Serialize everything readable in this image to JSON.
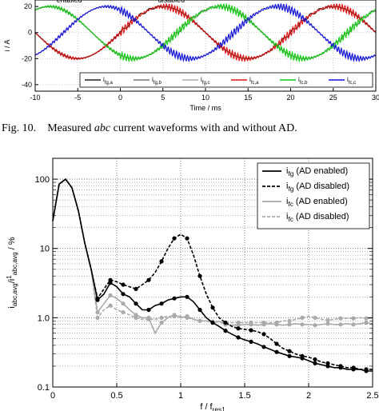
{
  "caption": {
    "label": "Fig. 10.",
    "text_before": "Measured ",
    "text_italic": "abc",
    "text_after": " current waveforms with and without AD."
  },
  "chart_data": [
    {
      "type": "line",
      "ylabel": "i / A",
      "xlabel": "Time / ms",
      "xlim": [
        -10,
        30
      ],
      "ylim": [
        -45,
        25
      ],
      "x_ticks": [
        -10,
        -5,
        0,
        5,
        10,
        15,
        20,
        25,
        30
      ],
      "y_ticks": [
        20,
        0,
        -20,
        -40
      ],
      "annotations": [
        "enabled",
        "disabled"
      ],
      "period_ms": 20,
      "amplitude_A": 20,
      "series": [
        {
          "name": "i_fg,a",
          "label_main": "i",
          "label_sub": "fg,a",
          "color": "#222222",
          "phase_deg": 0
        },
        {
          "name": "i_fg,b",
          "label_main": "i",
          "label_sub": "fg,b",
          "color": "#777777",
          "phase_deg": -120
        },
        {
          "name": "i_fg,c",
          "label_main": "i",
          "label_sub": "fg,c",
          "color": "#aaaaaa",
          "phase_deg": 120
        },
        {
          "name": "i_fc,a",
          "label_main": "i",
          "label_sub": "fc,a",
          "color": "#dd1111",
          "phase_deg": 0
        },
        {
          "name": "i_fc,b",
          "label_main": "i",
          "label_sub": "fc,b",
          "color": "#11cc11",
          "phase_deg": -120
        },
        {
          "name": "i_fc,c",
          "label_main": "i",
          "label_sub": "fc,c",
          "color": "#1111dd",
          "phase_deg": 120
        }
      ]
    },
    {
      "type": "line",
      "ylabel": "i_abc,avg / i^1_abc,avg / %",
      "ylabel_parts": {
        "main": "i",
        "sub": "abc,avg",
        "slash": "/i",
        "sup": "1",
        "sub2": "abc,avg",
        "unit": " / %"
      },
      "xlabel": "f / f_res1",
      "xlabel_parts": {
        "main": "f / f",
        "sub": "res1"
      },
      "y_scale": "log",
      "xlim": [
        0,
        2.5
      ],
      "ylim": [
        0.1,
        200
      ],
      "x_ticks": [
        "0",
        "0.5",
        "1",
        "1.5",
        "2",
        "2.5"
      ],
      "y_ticks": [
        "100",
        "10",
        "1.0",
        "0.1"
      ],
      "legend_position": "top-right",
      "series": [
        {
          "name": "i_fg (AD enabled)",
          "label_main": "i",
          "label_sub": "fg",
          "label_rest": "(AD enabled)",
          "color": "#000000",
          "dash": "solid",
          "x": [
            0,
            0.05,
            0.1,
            0.15,
            0.2,
            0.25,
            0.3,
            0.35,
            0.4,
            0.45,
            0.5,
            0.55,
            0.6,
            0.65,
            0.7,
            0.75,
            0.8,
            0.85,
            0.9,
            0.95,
            1.0,
            1.05,
            1.1,
            1.15,
            1.2,
            1.25,
            1.3,
            1.35,
            1.4,
            1.45,
            1.5,
            1.55,
            1.6,
            1.65,
            1.7,
            1.75,
            1.8,
            1.85,
            1.9,
            1.95,
            2.0,
            2.05,
            2.1,
            2.15,
            2.2,
            2.25,
            2.3,
            2.35,
            2.4,
            2.45,
            2.5
          ],
          "y": [
            25,
            85,
            100,
            75,
            35,
            12,
            5,
            1.8,
            2.2,
            3.2,
            2.8,
            2.2,
            2.0,
            1.6,
            1.3,
            1.3,
            1.5,
            1.6,
            1.8,
            1.9,
            2.0,
            2.0,
            1.7,
            1.3,
            1.0,
            0.85,
            0.75,
            0.65,
            0.58,
            0.52,
            0.48,
            0.45,
            0.42,
            0.38,
            0.35,
            0.32,
            0.3,
            0.28,
            0.27,
            0.26,
            0.24,
            0.22,
            0.21,
            0.2,
            0.19,
            0.19,
            0.18,
            0.18,
            0.18,
            0.17,
            0.17
          ]
        },
        {
          "name": "i_fg (AD disabled)",
          "label_main": "i",
          "label_sub": "fg",
          "label_rest": "(AD disabled)",
          "color": "#000000",
          "dash": "dashed",
          "x": [
            0,
            0.05,
            0.1,
            0.15,
            0.2,
            0.25,
            0.3,
            0.35,
            0.4,
            0.45,
            0.5,
            0.55,
            0.6,
            0.65,
            0.7,
            0.75,
            0.8,
            0.85,
            0.9,
            0.95,
            1.0,
            1.05,
            1.1,
            1.15,
            1.2,
            1.25,
            1.3,
            1.35,
            1.4,
            1.45,
            1.5,
            1.55,
            1.6,
            1.65,
            1.7,
            1.75,
            1.8,
            1.85,
            1.9,
            1.95,
            2.0,
            2.05,
            2.1,
            2.15,
            2.2,
            2.25,
            2.3,
            2.35,
            2.4,
            2.45,
            2.5
          ],
          "y": [
            25,
            85,
            100,
            75,
            35,
            12,
            5,
            1.9,
            2.6,
            3.5,
            3.3,
            3.0,
            2.8,
            2.6,
            3.0,
            3.5,
            4.5,
            6.5,
            10,
            14,
            16,
            14,
            8,
            4,
            2.2,
            1.4,
            1.0,
            0.85,
            0.75,
            0.7,
            0.68,
            0.66,
            0.63,
            0.58,
            0.5,
            0.42,
            0.36,
            0.33,
            0.3,
            0.28,
            0.27,
            0.25,
            0.23,
            0.22,
            0.21,
            0.2,
            0.19,
            0.19,
            0.18,
            0.18,
            0.18
          ]
        },
        {
          "name": "i_fc (AD enabled)",
          "label_main": "i",
          "label_sub": "fc",
          "label_rest": "(AD enabled)",
          "color": "#aaaaaa",
          "dash": "solid",
          "x": [
            0,
            0.05,
            0.1,
            0.15,
            0.2,
            0.25,
            0.3,
            0.35,
            0.4,
            0.45,
            0.5,
            0.55,
            0.6,
            0.65,
            0.7,
            0.75,
            0.8,
            0.85,
            0.9,
            0.95,
            1.0,
            1.05,
            1.1,
            1.15,
            1.2,
            1.25,
            1.3,
            1.35,
            1.4,
            1.45,
            1.5,
            1.55,
            1.6,
            1.65,
            1.7,
            1.75,
            1.8,
            1.85,
            1.9,
            1.95,
            2.0,
            2.05,
            2.1,
            2.15,
            2.2,
            2.25,
            2.3,
            2.35,
            2.4,
            2.45,
            2.5
          ],
          "y": [
            25,
            85,
            100,
            75,
            35,
            12,
            5,
            1.2,
            1.6,
            2.1,
            1.9,
            1.6,
            1.3,
            1.1,
            1.0,
            1.0,
            0.6,
            0.85,
            1.0,
            1.1,
            1.0,
            1.05,
            0.95,
            0.9,
            0.9,
            0.85,
            0.88,
            0.8,
            0.78,
            0.78,
            0.8,
            0.8,
            0.78,
            0.8,
            0.82,
            0.8,
            0.78,
            0.8,
            0.82,
            0.8,
            0.8,
            0.78,
            0.8,
            0.82,
            0.8,
            0.8,
            0.82,
            0.8,
            0.82,
            0.85,
            0.82
          ]
        },
        {
          "name": "i_fc (AD disabled)",
          "label_main": "i",
          "label_sub": "fc",
          "label_rest": "(AD disabled)",
          "color": "#aaaaaa",
          "dash": "dashed",
          "x": [
            0,
            0.05,
            0.1,
            0.15,
            0.2,
            0.25,
            0.3,
            0.35,
            0.4,
            0.45,
            0.5,
            0.55,
            0.6,
            0.65,
            0.7,
            0.75,
            0.8,
            0.85,
            0.9,
            0.95,
            1.0,
            1.05,
            1.1,
            1.15,
            1.2,
            1.25,
            1.3,
            1.35,
            1.4,
            1.45,
            1.5,
            1.55,
            1.6,
            1.65,
            1.7,
            1.75,
            1.8,
            1.85,
            1.9,
            1.95,
            2.0,
            2.05,
            2.1,
            2.15,
            2.2,
            2.25,
            2.3,
            2.35,
            2.4,
            2.45,
            2.5
          ],
          "y": [
            25,
            85,
            100,
            75,
            35,
            12,
            5,
            1.0,
            1.3,
            1.5,
            1.3,
            1.2,
            1.1,
            1.0,
            0.95,
            0.95,
            0.95,
            1.0,
            1.05,
            1.05,
            1.05,
            1.0,
            0.95,
            0.9,
            0.9,
            0.88,
            0.88,
            0.85,
            0.85,
            0.85,
            0.85,
            0.85,
            0.85,
            0.85,
            0.85,
            0.85,
            0.9,
            0.9,
            0.95,
            1.0,
            1.05,
            1.0,
            0.95,
            0.92,
            0.95,
            0.98,
            0.98,
            0.98,
            1.0,
            0.98,
            0.98
          ]
        }
      ]
    }
  ]
}
